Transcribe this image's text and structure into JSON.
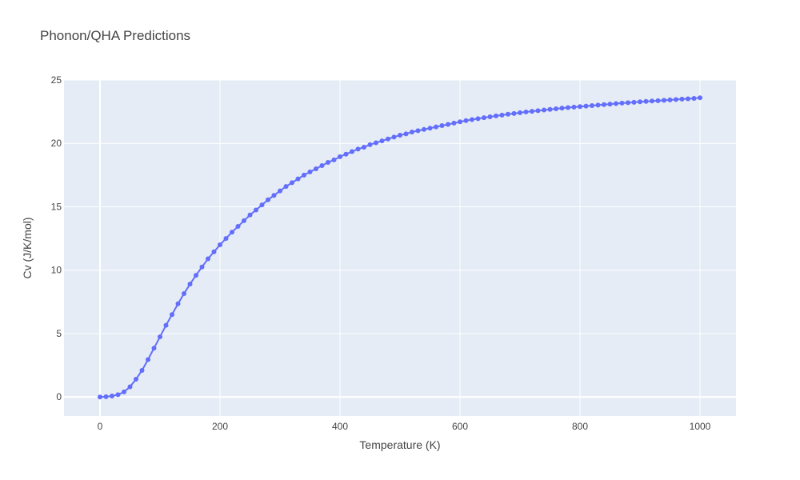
{
  "chart_data": {
    "type": "scatter",
    "mode": "lines+markers",
    "title": "Phonon/QHA Predictions",
    "xlabel": "Temperature (K)",
    "ylabel": "Cv (J/K/mol)",
    "xlim": [
      -60,
      1060
    ],
    "ylim": [
      -1.5,
      25
    ],
    "xticks": [
      0,
      200,
      400,
      600,
      800,
      1000
    ],
    "yticks": [
      0,
      5,
      10,
      15,
      20,
      25
    ],
    "grid": true,
    "colors": {
      "plot_bg": "#e5ecf6",
      "grid": "#ffffff",
      "series": "#636efa"
    },
    "series": [
      {
        "x": [
          0,
          10,
          20,
          30,
          40,
          50,
          60,
          70,
          80,
          90,
          100,
          110,
          120,
          130,
          140,
          150,
          160,
          170,
          180,
          190,
          200,
          210,
          220,
          230,
          240,
          250,
          260,
          270,
          280,
          290,
          300,
          310,
          320,
          330,
          340,
          350,
          360,
          370,
          380,
          390,
          400,
          410,
          420,
          430,
          440,
          450,
          460,
          470,
          480,
          490,
          500,
          510,
          520,
          530,
          540,
          550,
          560,
          570,
          580,
          590,
          600,
          610,
          620,
          630,
          640,
          650,
          660,
          670,
          680,
          690,
          700,
          710,
          720,
          730,
          740,
          750,
          760,
          770,
          780,
          790,
          800,
          810,
          820,
          830,
          840,
          850,
          860,
          870,
          880,
          890,
          900,
          910,
          920,
          930,
          940,
          950,
          960,
          970,
          980,
          990,
          1000
        ],
        "y": [
          0,
          0.02,
          0.08,
          0.18,
          0.4,
          0.8,
          1.4,
          2.1,
          2.95,
          3.85,
          4.75,
          5.65,
          6.5,
          7.35,
          8.15,
          8.9,
          9.6,
          10.25,
          10.9,
          11.45,
          12.0,
          12.5,
          13.0,
          13.45,
          13.9,
          14.35,
          14.75,
          15.15,
          15.55,
          15.9,
          16.25,
          16.6,
          16.9,
          17.2,
          17.5,
          17.75,
          18.0,
          18.25,
          18.5,
          18.7,
          18.95,
          19.15,
          19.35,
          19.55,
          19.7,
          19.9,
          20.05,
          20.2,
          20.35,
          20.5,
          20.65,
          20.75,
          20.9,
          21.0,
          21.1,
          21.2,
          21.3,
          21.4,
          21.5,
          21.6,
          21.7,
          21.8,
          21.88,
          21.95,
          22.03,
          22.1,
          22.17,
          22.23,
          22.3,
          22.36,
          22.42,
          22.48,
          22.53,
          22.58,
          22.63,
          22.68,
          22.73,
          22.78,
          22.82,
          22.86,
          22.9,
          22.94,
          22.98,
          23.02,
          23.06,
          23.1,
          23.14,
          23.18,
          23.21,
          23.24,
          23.28,
          23.31,
          23.34,
          23.37,
          23.4,
          23.43,
          23.46,
          23.49,
          23.52,
          23.55,
          23.6
        ]
      }
    ]
  }
}
